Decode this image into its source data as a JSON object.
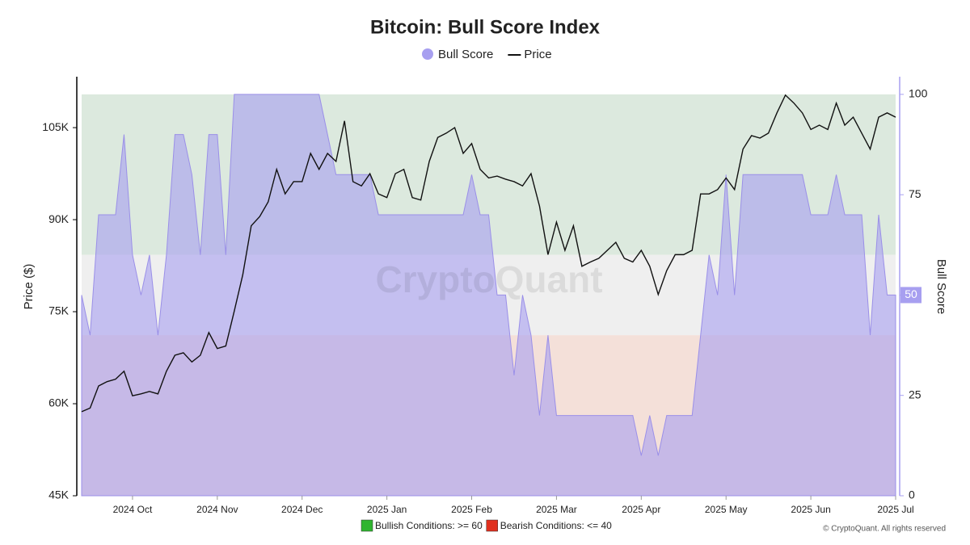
{
  "chart_data": {
    "type": "area-line",
    "title": "Bitcoin: Bull Score Index",
    "watermark": "CryptoQuant",
    "credit": "© CryptoQuant. All rights reserved",
    "categories": [
      null,
      null,
      null,
      null,
      null,
      null,
      "2024 Oct",
      null,
      null,
      null,
      null,
      null,
      null,
      null,
      null,
      null,
      "2024 Nov",
      null,
      null,
      null,
      null,
      null,
      null,
      null,
      null,
      null,
      "2024 Dec",
      null,
      null,
      null,
      null,
      null,
      null,
      null,
      null,
      null,
      "2025 Jan",
      null,
      null,
      null,
      null,
      null,
      null,
      null,
      null,
      null,
      "2025 Feb",
      null,
      null,
      null,
      null,
      null,
      null,
      null,
      null,
      null,
      "2025 Mar",
      null,
      null,
      null,
      null,
      null,
      null,
      null,
      null,
      null,
      "2025 Apr",
      null,
      null,
      null,
      null,
      null,
      null,
      null,
      null,
      null,
      "2025 May",
      null,
      null,
      null,
      null,
      null,
      null,
      null,
      null,
      null,
      "2025 Jun",
      null,
      null,
      null,
      null,
      null,
      null,
      null,
      null,
      null,
      "2025 Jul"
    ],
    "series": [
      {
        "name": "Bull Score",
        "kind": "area",
        "axis": "y2",
        "color": "#a79ff0",
        "values": [
          50,
          40,
          70,
          70,
          70,
          90,
          60,
          50,
          60,
          40,
          60,
          90,
          90,
          80,
          60,
          90,
          90,
          60,
          100,
          100,
          100,
          100,
          100,
          100,
          100,
          100,
          100,
          100,
          100,
          90,
          80,
          80,
          80,
          80,
          80,
          70,
          70,
          70,
          70,
          70,
          70,
          70,
          70,
          70,
          70,
          70,
          80,
          70,
          70,
          50,
          50,
          30,
          50,
          40,
          20,
          40,
          20,
          20,
          20,
          20,
          20,
          20,
          20,
          20,
          20,
          20,
          10,
          20,
          10,
          20,
          20,
          20,
          20,
          40,
          60,
          50,
          80,
          50,
          80,
          80,
          80,
          80,
          80,
          80,
          80,
          80,
          70,
          70,
          70,
          80,
          70,
          70,
          70,
          40,
          70,
          50,
          50
        ],
        "value_labels_last": "50"
      },
      {
        "name": "Price",
        "kind": "line",
        "axis": "y",
        "color": "#111111",
        "values": [
          58700,
          59300,
          62900,
          63600,
          64000,
          65300,
          61300,
          61600,
          62000,
          61600,
          65300,
          67900,
          68300,
          66800,
          67900,
          71600,
          69000,
          69400,
          75100,
          81000,
          89000,
          90500,
          92900,
          98200,
          94200,
          96200,
          96200,
          100800,
          98200,
          100800,
          99500,
          106100,
          96200,
          95500,
          97500,
          94200,
          93600,
          97500,
          98200,
          93600,
          93200,
          99500,
          103400,
          104100,
          105000,
          100800,
          102400,
          98200,
          96800,
          97100,
          96600,
          96200,
          95500,
          97500,
          92200,
          84300,
          89600,
          85000,
          89000,
          82400,
          83100,
          83700,
          85000,
          86300,
          83700,
          83100,
          85000,
          82400,
          77800,
          81700,
          84300,
          84300,
          85000,
          94200,
          94200,
          94900,
          96800,
          94900,
          101500,
          103700,
          103300,
          104100,
          107400,
          110300,
          109000,
          107400,
          104700,
          105400,
          104700,
          109000,
          105400,
          106700,
          104100,
          101500,
          106700,
          107400,
          106700
        ]
      }
    ],
    "zones": [
      {
        "label": "Bullish Conditions: >= 60",
        "range": [
          60,
          100
        ],
        "color": "#dce9de",
        "legend_color": "#2fb52f"
      },
      {
        "range": [
          40,
          60
        ],
        "color": "#efefef"
      },
      {
        "label": "Bearish Conditions: <= 40",
        "range": [
          0,
          40
        ],
        "color": "#f4e0d9",
        "legend_color": "#e0301e"
      }
    ],
    "ylabel": "Price ($)",
    "y2label": "Bull Score",
    "ylim": [
      45000,
      113300
    ],
    "yticks": [
      {
        "value": 45000,
        "label": "45K"
      },
      {
        "value": 60000,
        "label": "60K"
      },
      {
        "value": 75000,
        "label": "75K"
      },
      {
        "value": 90000,
        "label": "90K"
      },
      {
        "value": 105000,
        "label": "105K"
      }
    ],
    "y2lim": [
      0,
      104.4
    ],
    "y2ticks": [
      0,
      25,
      50,
      75,
      100
    ]
  }
}
